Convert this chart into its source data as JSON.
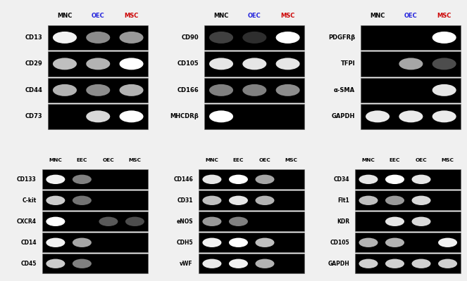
{
  "background": "#f0f0f0",
  "top_panels": [
    {
      "header": [
        "MNC",
        "OEC",
        "MSC"
      ],
      "header_colors": [
        "black",
        "#2222dd",
        "#cc0000"
      ],
      "rows": [
        {
          "label": "CD13",
          "bands": [
            1,
            1,
            1
          ],
          "intensity": [
            0.95,
            0.55,
            0.6
          ]
        },
        {
          "label": "CD29",
          "bands": [
            1,
            1,
            1
          ],
          "intensity": [
            0.75,
            0.7,
            1.0
          ]
        },
        {
          "label": "CD44",
          "bands": [
            1,
            1,
            1
          ],
          "intensity": [
            0.7,
            0.55,
            0.7
          ]
        },
        {
          "label": "CD73",
          "bands": [
            0,
            1,
            1
          ],
          "intensity": [
            0,
            0.85,
            1.0
          ]
        }
      ],
      "n_lanes": 3
    },
    {
      "header": [
        "MNC",
        "OEC",
        "MSC"
      ],
      "header_colors": [
        "black",
        "#2222dd",
        "#cc0000"
      ],
      "rows": [
        {
          "label": "CD90",
          "bands": [
            1,
            1,
            1
          ],
          "intensity": [
            0.25,
            0.18,
            1.0
          ]
        },
        {
          "label": "CD105",
          "bands": [
            1,
            1,
            1
          ],
          "intensity": [
            0.9,
            0.9,
            0.9
          ]
        },
        {
          "label": "CD166",
          "bands": [
            1,
            1,
            1
          ],
          "intensity": [
            0.5,
            0.5,
            0.55
          ]
        },
        {
          "label": "MHCDRβ",
          "bands": [
            1,
            0,
            0
          ],
          "intensity": [
            1.0,
            0,
            0
          ]
        }
      ],
      "n_lanes": 3
    },
    {
      "header": [
        "MNC",
        "OEC",
        "MSC"
      ],
      "header_colors": [
        "black",
        "#2222dd",
        "#cc0000"
      ],
      "rows": [
        {
          "label": "PDGFRβ",
          "bands": [
            0,
            0,
            1
          ],
          "intensity": [
            0,
            0,
            1.0
          ]
        },
        {
          "label": "TFPI",
          "bands": [
            0,
            1,
            1
          ],
          "intensity": [
            0,
            0.65,
            0.3
          ]
        },
        {
          "label": "α-SMA",
          "bands": [
            0,
            0,
            1
          ],
          "intensity": [
            0,
            0,
            0.9
          ]
        },
        {
          "label": "GAPDH",
          "bands": [
            1,
            1,
            1
          ],
          "intensity": [
            0.92,
            0.92,
            0.92
          ]
        }
      ],
      "n_lanes": 3
    }
  ],
  "bottom_panels": [
    {
      "header": [
        "MNC",
        "EEC",
        "OEC",
        "MSC"
      ],
      "header_colors": [
        "black",
        "black",
        "black",
        "black"
      ],
      "rows": [
        {
          "label": "CD133",
          "bands": [
            1,
            1,
            0,
            0
          ],
          "intensity": [
            0.95,
            0.5,
            0,
            0
          ]
        },
        {
          "label": "C-kit",
          "bands": [
            1,
            1,
            0,
            0
          ],
          "intensity": [
            0.8,
            0.45,
            0,
            0
          ]
        },
        {
          "label": "CXCR4",
          "bands": [
            1,
            0,
            1,
            1
          ],
          "intensity": [
            1.0,
            0,
            0.35,
            0.3
          ]
        },
        {
          "label": "CD14",
          "bands": [
            1,
            1,
            0,
            0
          ],
          "intensity": [
            0.95,
            0.65,
            0,
            0
          ]
        },
        {
          "label": "CD45",
          "bands": [
            1,
            1,
            0,
            0
          ],
          "intensity": [
            0.8,
            0.5,
            0,
            0
          ]
        }
      ],
      "n_lanes": 4
    },
    {
      "header": [
        "MNC",
        "EEC",
        "OEC",
        "MSC"
      ],
      "header_colors": [
        "black",
        "black",
        "black",
        "black"
      ],
      "rows": [
        {
          "label": "CD146",
          "bands": [
            1,
            1,
            1,
            0
          ],
          "intensity": [
            0.9,
            1.0,
            0.65,
            0
          ]
        },
        {
          "label": "CD31",
          "bands": [
            1,
            1,
            1,
            0
          ],
          "intensity": [
            0.75,
            0.9,
            0.7,
            0
          ]
        },
        {
          "label": "eNOS",
          "bands": [
            1,
            1,
            0,
            0
          ],
          "intensity": [
            0.6,
            0.5,
            0,
            0
          ]
        },
        {
          "label": "CDH5",
          "bands": [
            1,
            1,
            1,
            0
          ],
          "intensity": [
            0.95,
            1.0,
            0.75,
            0
          ]
        },
        {
          "label": "vWF",
          "bands": [
            1,
            1,
            1,
            0
          ],
          "intensity": [
            0.92,
            0.95,
            0.7,
            0
          ]
        }
      ],
      "n_lanes": 4
    },
    {
      "header": [
        "MNC",
        "EEC",
        "OEC",
        "MSC"
      ],
      "header_colors": [
        "black",
        "black",
        "black",
        "black"
      ],
      "rows": [
        {
          "label": "CD34",
          "bands": [
            1,
            1,
            1,
            0
          ],
          "intensity": [
            0.9,
            1.0,
            0.9,
            0
          ]
        },
        {
          "label": "Flt1",
          "bands": [
            1,
            1,
            1,
            0
          ],
          "intensity": [
            0.75,
            0.6,
            0.85,
            0
          ]
        },
        {
          "label": "KDR",
          "bands": [
            0,
            1,
            1,
            0
          ],
          "intensity": [
            0,
            0.9,
            0.85,
            0
          ]
        },
        {
          "label": "CD105",
          "bands": [
            1,
            1,
            0,
            1
          ],
          "intensity": [
            0.7,
            0.7,
            0,
            0.95
          ]
        },
        {
          "label": "GAPDH",
          "bands": [
            1,
            1,
            1,
            1
          ],
          "intensity": [
            0.82,
            0.82,
            0.82,
            0.82
          ]
        }
      ],
      "n_lanes": 4
    }
  ]
}
